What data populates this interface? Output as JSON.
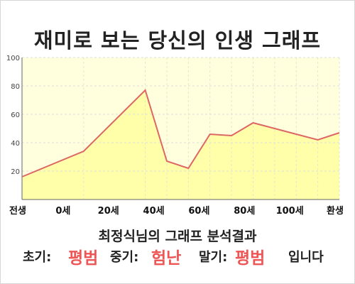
{
  "title": "재미로 보는 당신의 인생 그래프",
  "subtitle": "최정식님의 그래프 분석결과",
  "result": {
    "early_label": "초기:",
    "early_value": "평범",
    "mid_label": "중기:",
    "mid_value": "험난",
    "late_label": "말기:",
    "late_value": "평범",
    "ending": "입니다"
  },
  "colors": {
    "plot_bg": "#ffffdd",
    "area_fill": "#ffffaa",
    "line": "#dd6666",
    "highlight_text": "#ee5555"
  },
  "chart_data": {
    "type": "area",
    "categories": [
      "전생",
      "0세",
      "20세",
      "40세",
      "60세",
      "80세",
      "100세",
      "환생"
    ],
    "x": [
      -20,
      0,
      20,
      27,
      34,
      41,
      48,
      55,
      62,
      69,
      76,
      83
    ],
    "values": [
      16,
      34,
      77,
      27,
      22,
      46,
      45,
      54,
      50,
      46,
      42,
      47
    ],
    "xlim": [
      -20,
      83
    ],
    "ylim": [
      0,
      100
    ],
    "yticks": [
      20,
      40,
      60,
      80,
      100
    ],
    "grid": true,
    "title": "",
    "xlabel": "",
    "ylabel": ""
  }
}
